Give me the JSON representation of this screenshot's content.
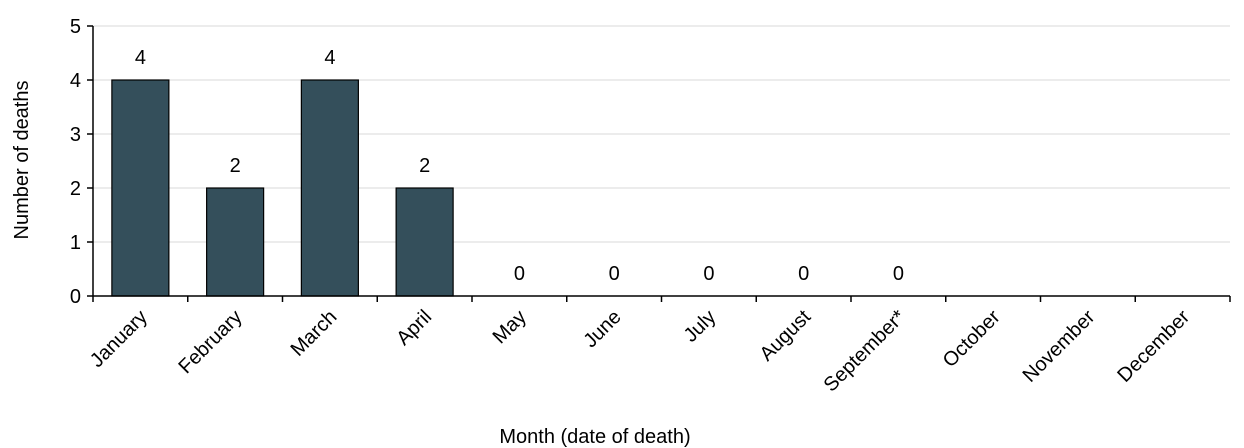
{
  "chart_data": {
    "type": "bar",
    "categories": [
      "January",
      "February",
      "March",
      "April",
      "May",
      "June",
      "July",
      "August",
      "September*",
      "October",
      "November",
      "December"
    ],
    "values": [
      4,
      2,
      4,
      2,
      0,
      0,
      0,
      0,
      0,
      null,
      null,
      null
    ],
    "data_labels": [
      "4",
      "2",
      "4",
      "2",
      "0",
      "0",
      "0",
      "0",
      "0",
      "",
      "",
      ""
    ],
    "title": "",
    "xlabel": "Month (date of death)",
    "ylabel": "Number of deaths",
    "ylim": [
      0,
      5
    ],
    "yticks": [
      "0",
      "1",
      "2",
      "3",
      "4",
      "5"
    ],
    "grid": true,
    "legend": "none",
    "bar_color": "#344f5b",
    "grid_color": "#d9d9d9"
  }
}
